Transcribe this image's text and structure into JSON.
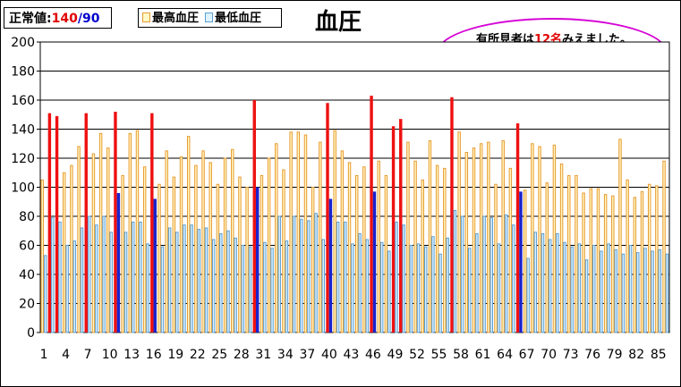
{
  "normal_values": {
    "label": "正常値:",
    "high": "140",
    "separator": "/",
    "low": "90"
  },
  "legend": {
    "max_label": "最高血圧",
    "min_label": "最低血圧"
  },
  "chart_title": "血圧",
  "note": {
    "prefix": "有所見者は",
    "count": "12名",
    "suffix": "みえました。"
  },
  "colors": {
    "max_bar_fill": "#fff9c8",
    "max_bar_stroke": "#e89a2e",
    "min_bar_fill": "#dff2ff",
    "min_bar_stroke": "#5a9fd4",
    "abnormal_max": "#ee1111",
    "abnormal_min": "#1a22cc",
    "note_border": "#d600d6",
    "highlight_text": "#e00000"
  },
  "chart_data": {
    "type": "bar",
    "title": "血圧",
    "ylim": [
      0,
      200
    ],
    "y_ticks": [
      0,
      20,
      40,
      60,
      80,
      100,
      120,
      140,
      160,
      180,
      200
    ],
    "x_tick_labels": [
      "1",
      "4",
      "7",
      "10",
      "13",
      "16",
      "19",
      "22",
      "25",
      "28",
      "31",
      "34",
      "37",
      "40",
      "43",
      "46",
      "49",
      "52",
      "55",
      "58",
      "61",
      "64",
      "67",
      "70",
      "73",
      "76",
      "79",
      "82",
      "85"
    ],
    "grid": "horizontal",
    "series": [
      {
        "name": "最高血圧",
        "values": [
          105,
          151,
          149,
          110,
          115,
          128,
          151,
          123,
          137,
          127,
          152,
          108,
          137,
          139,
          114,
          151,
          102,
          125,
          107,
          121,
          135,
          115,
          125,
          117,
          102,
          120,
          126,
          107,
          100,
          160,
          108,
          120,
          130,
          112,
          138,
          138,
          136,
          100,
          131,
          158,
          139,
          125,
          117,
          108,
          114,
          163,
          118,
          108,
          142,
          147,
          131,
          118,
          105,
          132,
          115,
          113,
          162,
          138,
          124,
          127,
          130,
          131,
          102,
          132,
          113,
          144,
          98,
          130,
          128,
          103,
          129,
          116,
          108,
          108,
          96,
          99,
          99,
          95,
          94,
          133,
          105,
          93,
          97,
          102,
          101,
          118
        ]
      },
      {
        "name": "最低血圧",
        "values": [
          53,
          79,
          76,
          60,
          63,
          72,
          80,
          74,
          80,
          69,
          96,
          69,
          76,
          76,
          61,
          92,
          59,
          72,
          69,
          74,
          74,
          71,
          72,
          64,
          68,
          70,
          65,
          60,
          59,
          100,
          62,
          58,
          80,
          63,
          80,
          78,
          77,
          82,
          64,
          92,
          76,
          76,
          61,
          68,
          64,
          97,
          62,
          56,
          76,
          74,
          60,
          61,
          59,
          66,
          54,
          65,
          84,
          80,
          58,
          68,
          80,
          79,
          61,
          81,
          74,
          97,
          51,
          69,
          68,
          64,
          68,
          62,
          59,
          61,
          50,
          60,
          56,
          61,
          57,
          54,
          60,
          55,
          58,
          56,
          57,
          54
        ]
      }
    ],
    "abnormal": {
      "max_indices": [
        1,
        2,
        6,
        10,
        15,
        29,
        39,
        45,
        48,
        49,
        56,
        65
      ],
      "min_indices": [
        10,
        15,
        29,
        39,
        45,
        65
      ]
    }
  }
}
